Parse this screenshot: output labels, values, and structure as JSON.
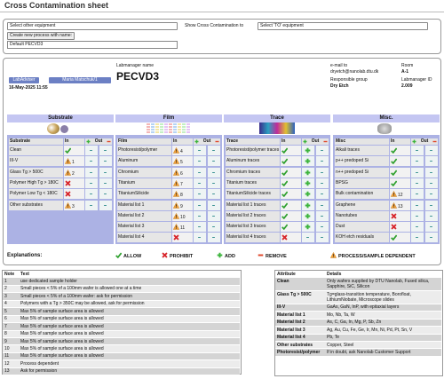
{
  "header": {
    "title": "Cross Contamination sheet"
  },
  "controls": {
    "from_select": "Select other equipment",
    "to_label": "Show Cross Contamination to",
    "to_select": "Select 'TO' equipment",
    "create_button": "Create new process with name:",
    "name_input": "Default PECVD3"
  },
  "info": {
    "labadviser": "LabAdviser",
    "user": "Maria Matschuk/1",
    "date": "16-May-2025 11:55",
    "labmanager_label": "Labmanager name",
    "tool": "PECVD3",
    "email_label": "e-mail to",
    "email": "dryetch@nanolab.dtu.dk",
    "room_label": "Room",
    "room": "A-1",
    "group_label": "Responsible group",
    "group": "Dry Etch",
    "id_label": "Labmanager ID",
    "id": "2.009"
  },
  "sections": [
    {
      "title": "Substrate",
      "columns": [
        "Substrate",
        "In",
        "Out"
      ],
      "rows": [
        {
          "name": "Clean",
          "in": "allow",
          "add": false
        },
        {
          "name": "III-V",
          "in": "dependent",
          "note": 1,
          "add": false
        },
        {
          "name": "Glass Tg > 500C",
          "in": "dependent",
          "note": 2,
          "add": false
        },
        {
          "name": "Polymer High Tg > 180C",
          "in": "prohibit",
          "add": false
        },
        {
          "name": "Polymer Low Tg < 180C",
          "in": "prohibit",
          "add": false
        },
        {
          "name": "Other substrates",
          "in": "dependent",
          "note": 3,
          "add": false
        }
      ]
    },
    {
      "title": "Film",
      "columns": [
        "Film",
        "In",
        "Out"
      ],
      "rows": [
        {
          "name": "Photoresist/polymer",
          "in": "dependent",
          "note": 4,
          "add": false
        },
        {
          "name": "Aluminum",
          "in": "dependent",
          "note": 5,
          "add": false
        },
        {
          "name": "Chromium",
          "in": "dependent",
          "note": 6,
          "add": false
        },
        {
          "name": "Titanium",
          "in": "dependent",
          "note": 7,
          "add": false
        },
        {
          "name": "TitaniumSilicide",
          "in": "dependent",
          "note": 8,
          "add": false
        },
        {
          "name": "Material list 1",
          "in": "dependent",
          "note": 9,
          "add": false
        },
        {
          "name": "Material list 2",
          "in": "dependent",
          "note": 10,
          "add": false
        },
        {
          "name": "Material list 3",
          "in": "dependent",
          "note": 11,
          "add": false
        },
        {
          "name": "Material list 4",
          "in": "prohibit",
          "add": false
        }
      ]
    },
    {
      "title": "Trace",
      "columns": [
        "Trace",
        "In",
        "Out"
      ],
      "rows": [
        {
          "name": "Photoresist/polymer traces",
          "in": "allow",
          "add": true
        },
        {
          "name": "Aluminum traces",
          "in": "allow",
          "add": true
        },
        {
          "name": "Chromium traces",
          "in": "allow",
          "add": true
        },
        {
          "name": "Titanium traces",
          "in": "allow",
          "add": true
        },
        {
          "name": "TitaniumSilicide traces",
          "in": "allow",
          "add": true
        },
        {
          "name": "Material list 1 traces",
          "in": "allow",
          "add": true
        },
        {
          "name": "Material list 2 traces",
          "in": "allow",
          "add": true
        },
        {
          "name": "Material list 3 traces",
          "in": "allow",
          "add": true
        },
        {
          "name": "Material list 4 traces",
          "in": "prohibit",
          "add": false
        }
      ]
    },
    {
      "title": "Misc.",
      "columns": [
        "Misc",
        "In",
        "Out"
      ],
      "rows": [
        {
          "name": "Alkali traces",
          "in": "allow",
          "add": false
        },
        {
          "name": "p++ predoped Si",
          "in": "allow",
          "add": false
        },
        {
          "name": "n++ predoped Si",
          "in": "allow",
          "add": false
        },
        {
          "name": "BPSG",
          "in": "allow",
          "add": false
        },
        {
          "name": "Bulk contamination",
          "in": "dependent",
          "note": 12,
          "add": false
        },
        {
          "name": "Graphene",
          "in": "dependent",
          "note": 13,
          "add": false
        },
        {
          "name": "Nanotubes",
          "in": "prohibit",
          "add": false
        },
        {
          "name": "Dust",
          "in": "prohibit",
          "add": false
        },
        {
          "name": "KOH etch residuals",
          "in": "allow",
          "add": false
        }
      ]
    }
  ],
  "legend": {
    "label": "Explanations:",
    "items": [
      {
        "icon": "allow",
        "text": "ALLOW"
      },
      {
        "icon": "prohibit",
        "text": "PROHIBIT"
      },
      {
        "icon": "add",
        "text": "ADD"
      },
      {
        "icon": "remove",
        "text": "REMOVE"
      },
      {
        "icon": "dependent",
        "text": "PROCESS/SAMPLE DEPENDENT"
      }
    ]
  },
  "notes": {
    "headers": [
      "Note",
      "Text"
    ],
    "rows": [
      [
        1,
        "use dedicated sample holder"
      ],
      [
        2,
        "Small pieces < 5% of a 100mm wafer is allowed one at a time"
      ],
      [
        3,
        "Small pieces < 5% of a 100mm wafer: ask for permission"
      ],
      [
        4,
        "Polymers with a Tg > 350C may be allowed, ask for permission"
      ],
      [
        5,
        "Max 5% of sample surface area is allowed"
      ],
      [
        6,
        "Max 5% of sample surface area is allowed"
      ],
      [
        7,
        "Max 5% of sample surface area is allowed"
      ],
      [
        8,
        "Max 5% of sample surface area is allowed"
      ],
      [
        9,
        "Max 5% of sample surface area is allowed"
      ],
      [
        10,
        "Max 5% of sample surface area is allowed"
      ],
      [
        11,
        "Max 5% of sample surface area is allowed"
      ],
      [
        12,
        "Process dependent"
      ],
      [
        13,
        "Ask for permission"
      ]
    ]
  },
  "attributes": {
    "headers": [
      "Attribute",
      "Details"
    ],
    "rows": [
      [
        "Clean",
        "Only wafers supplied by DTU Nanolab, Fused silica, Sapphire, SiC, Silicon"
      ],
      [
        "Glass Tg > 500C",
        "Tg=glass-transition temperature, Borofloat, LithiumNiobate, Microscope slides"
      ],
      [
        "III-V",
        "GaAs, GaN, InP, with epitaxial layers"
      ],
      [
        "Material list 1",
        "Mo, Nb, Ta, W"
      ],
      [
        "Material list 2",
        "As, C, Ga, In, Mg, P, Sb, Zn"
      ],
      [
        "Material list 3",
        "Ag, Au, Cu, Fe, Ge, Ir, Mn, Ni, Pd, Pt, Sn, V"
      ],
      [
        "Material list 4",
        "Pb, Te"
      ],
      [
        "Other substrates",
        "Copper, Steel"
      ],
      [
        "Photoresist/polymer",
        "If in doubt, ask Nanolab Customer Support"
      ]
    ]
  }
}
